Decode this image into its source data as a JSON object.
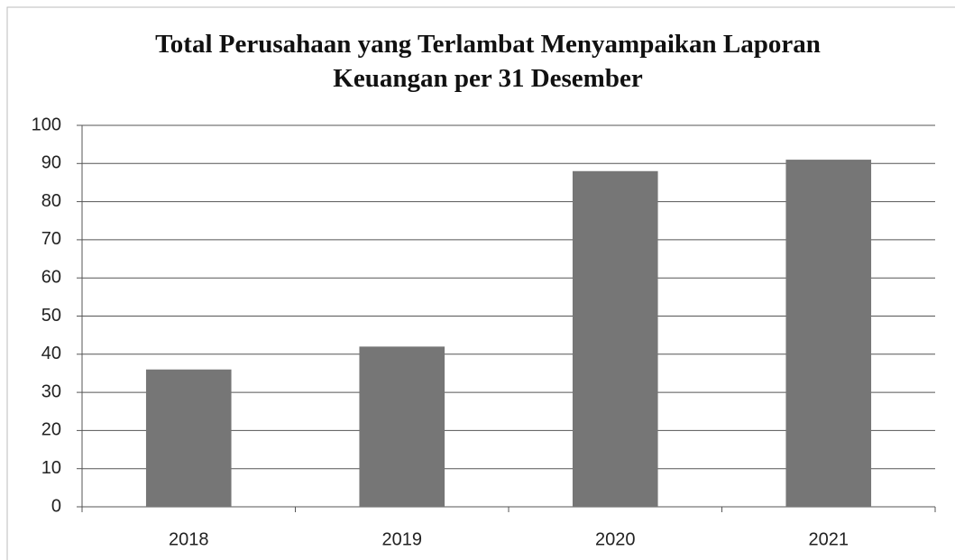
{
  "chart_data": {
    "type": "bar",
    "title": "Total Perusahaan yang Terlambat Menyampaikan Laporan Keuangan per 31 Desember",
    "categories": [
      "2018",
      "2019",
      "2020",
      "2021"
    ],
    "values": [
      36,
      42,
      88,
      91
    ],
    "color": "#767676",
    "ylim": [
      0,
      100
    ],
    "yticks": [
      0,
      10,
      20,
      30,
      40,
      50,
      60,
      70,
      80,
      90,
      100
    ],
    "grid": true
  }
}
